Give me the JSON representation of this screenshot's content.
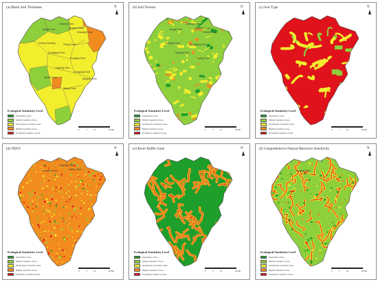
{
  "colors": {
    "insensitive": "#1e9e2b",
    "mildly": "#8ecf3c",
    "moderately": "#f2ee2e",
    "highly": "#f28c1f",
    "extremely": "#e0121b",
    "boundary": "#555555"
  },
  "north_label": "N",
  "legend": {
    "title": "Ecological Sensitivity Level",
    "items": [
      {
        "label": "Insensitive Zone",
        "color": "#1e9e2b"
      },
      {
        "label": "Mildly Sensitive Zone",
        "color": "#8ecf3c"
      },
      {
        "label": "Moderately Sensitive Zone",
        "color": "#f2ee2e"
      },
      {
        "label": "Highly Sensitive Zone",
        "color": "#f28c1f"
      },
      {
        "label": "Extremely Sensitive Zone",
        "color": "#e0121b"
      }
    ]
  },
  "scale_ticks": [
    "0",
    "5",
    "10",
    "20 km"
  ],
  "panels": [
    {
      "title": "(a) Black Soil Thickness",
      "style": "townships",
      "place_names": [
        "Hongqi Town",
        "Xinsheng Town",
        "Qingshan Town",
        "Shuanghe Town",
        "Helong Town",
        "Xinxing Township",
        "Changjiang Town",
        "Dongfang Town",
        "Yongning Town",
        "Xiangyang Town",
        "Baoquan Town",
        "Jianshe Town",
        "Taiping Town"
      ]
    },
    {
      "title": "(b) Soil Texture",
      "style": "texture",
      "place_names": [
        "Hongqi Town",
        "Xinsheng Town",
        "Qingshan Town",
        "Helong Town",
        "Changjiang Town",
        "Dongfang Town",
        "Yongning Town",
        "Taiping Town"
      ]
    },
    {
      "title": "(c) Soil Type",
      "style": "soiltype",
      "place_names": []
    },
    {
      "title": "(d) NDVI",
      "style": "ndvi",
      "place_names": [
        "Dongfang Town",
        "Yongning Town",
        "Taiping Town"
      ]
    },
    {
      "title": "(e) River Buffer Zone",
      "style": "river",
      "place_names": []
    },
    {
      "title": "(f) Comprehensive Natural Resource Sensitivity",
      "style": "composite",
      "place_names": [
        "Dongfang Town"
      ]
    }
  ]
}
